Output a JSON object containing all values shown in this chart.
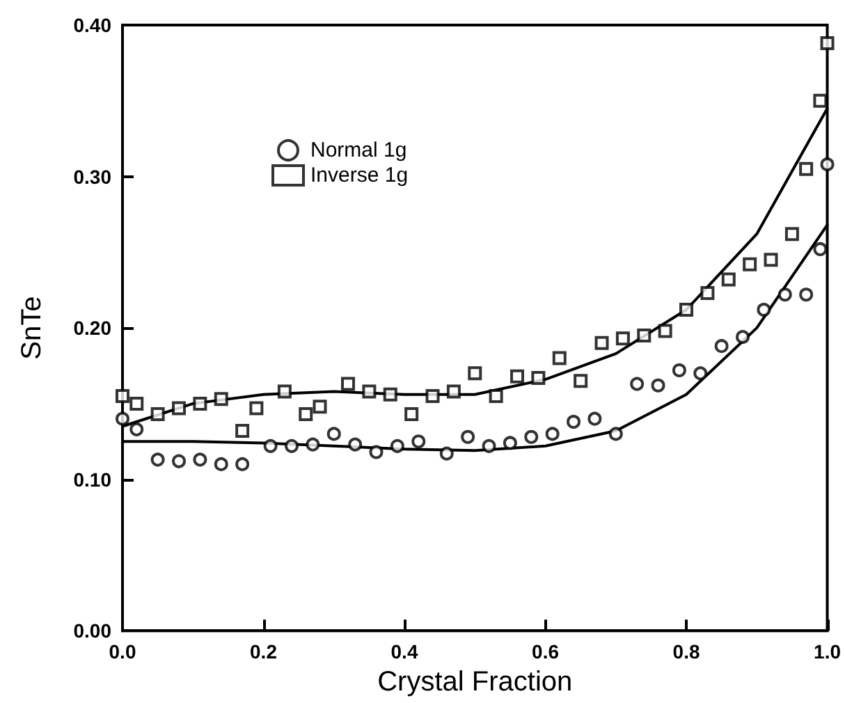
{
  "chart_data": {
    "type": "scatter",
    "xlabel": "Crystal Fraction",
    "ylabel": "SnTe",
    "xlim": [
      0,
      1
    ],
    "ylim": [
      0,
      0.4
    ],
    "xticks": [
      {
        "value": 0,
        "label": "0.0"
      },
      {
        "value": 0.2,
        "label": "0.2"
      },
      {
        "value": 0.4,
        "label": "0.4"
      },
      {
        "value": 0.6,
        "label": "0.6"
      },
      {
        "value": 0.8,
        "label": "0.8"
      },
      {
        "value": 1,
        "label": "1.0"
      }
    ],
    "yticks": [
      {
        "value": 0,
        "label": "0.00"
      },
      {
        "value": 0.1,
        "label": "0.10"
      },
      {
        "value": 0.2,
        "label": "0.20"
      },
      {
        "value": 0.3,
        "label": "0.30"
      },
      {
        "value": 0.4,
        "label": "0.40"
      }
    ],
    "grid": false,
    "legend": "top left",
    "series": [
      {
        "name": "Normal 1g",
        "color": "#000000",
        "marker": "circle",
        "x": [
          0.0,
          0.02,
          0.05,
          0.08,
          0.11,
          0.14,
          0.17,
          0.21,
          0.24,
          0.27,
          0.3,
          0.33,
          0.36,
          0.39,
          0.42,
          0.46,
          0.49,
          0.52,
          0.55,
          0.58,
          0.61,
          0.64,
          0.67,
          0.7,
          0.73,
          0.76,
          0.79,
          0.82,
          0.85,
          0.88,
          0.91,
          0.94,
          0.97,
          0.99,
          1.0
        ],
        "values": [
          0.14,
          0.133,
          0.113,
          0.112,
          0.113,
          0.11,
          0.11,
          0.122,
          0.122,
          0.123,
          0.13,
          0.123,
          0.118,
          0.122,
          0.125,
          0.117,
          0.128,
          0.122,
          0.124,
          0.128,
          0.13,
          0.138,
          0.14,
          0.13,
          0.163,
          0.162,
          0.172,
          0.17,
          0.188,
          0.194,
          0.212,
          0.222,
          0.222,
          0.252,
          0.308
        ]
      },
      {
        "name": "Inverse 1g",
        "color": "#000000",
        "marker": "square",
        "x": [
          0.0,
          0.02,
          0.05,
          0.08,
          0.11,
          0.14,
          0.17,
          0.19,
          0.23,
          0.26,
          0.28,
          0.32,
          0.35,
          0.38,
          0.41,
          0.44,
          0.47,
          0.5,
          0.53,
          0.56,
          0.59,
          0.62,
          0.65,
          0.68,
          0.71,
          0.74,
          0.77,
          0.8,
          0.83,
          0.86,
          0.89,
          0.92,
          0.95,
          0.97,
          0.99,
          1.0
        ],
        "values": [
          0.155,
          0.15,
          0.143,
          0.147,
          0.15,
          0.153,
          0.132,
          0.147,
          0.158,
          0.143,
          0.148,
          0.163,
          0.158,
          0.156,
          0.143,
          0.155,
          0.158,
          0.17,
          0.155,
          0.168,
          0.167,
          0.18,
          0.165,
          0.19,
          0.193,
          0.195,
          0.198,
          0.212,
          0.223,
          0.232,
          0.242,
          0.245,
          0.262,
          0.305,
          0.35,
          0.388
        ]
      },
      {
        "type": "line",
        "color": "#000000",
        "line_style": "solid",
        "x": [
          0,
          0.1,
          0.2,
          0.3,
          0.4,
          0.5,
          0.6,
          0.7,
          0.8,
          0.9,
          1.0
        ],
        "values": [
          0.125,
          0.125,
          0.124,
          0.122,
          0.12,
          0.119,
          0.122,
          0.132,
          0.156,
          0.2,
          0.268
        ]
      },
      {
        "type": "line",
        "color": "#000000",
        "line_style": "solid",
        "x": [
          0,
          0.1,
          0.2,
          0.3,
          0.4,
          0.5,
          0.6,
          0.7,
          0.8,
          0.9,
          1.0
        ],
        "values": [
          0.135,
          0.15,
          0.156,
          0.158,
          0.156,
          0.156,
          0.166,
          0.183,
          0.212,
          0.262,
          0.345
        ]
      }
    ]
  }
}
